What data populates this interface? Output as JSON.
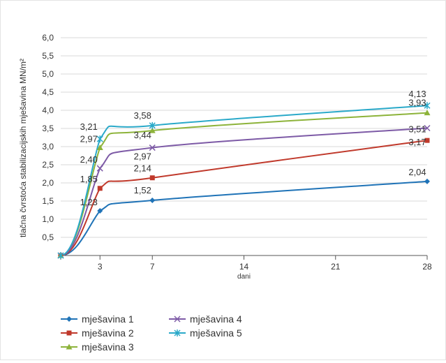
{
  "chart_data": {
    "type": "line",
    "title": "",
    "xlabel": "dani",
    "ylabel": "tlačna čvrstoća stabilizacijskih mješavina MN/m²",
    "xlim": [
      0,
      28
    ],
    "ylim": [
      0,
      6.0
    ],
    "x_ticks": [
      3,
      7,
      14,
      21,
      28
    ],
    "y_ticks": [
      "0,5",
      "1,0",
      "1,5",
      "2,0",
      "2,5",
      "3,0",
      "3,5",
      "4,0",
      "4,5",
      "5,0",
      "5,5",
      "6,0"
    ],
    "grid": "horizontal",
    "legend_position": "bottom-left",
    "x": [
      0,
      3,
      7,
      28
    ],
    "series": [
      {
        "name": "mješavina 1",
        "color": "#1f73b7",
        "marker": "diamond",
        "values": [
          0,
          1.23,
          1.52,
          2.04
        ],
        "labels": [
          "",
          "1,23",
          "1,52",
          "2,04"
        ]
      },
      {
        "name": "mješavina 2",
        "color": "#c0392b",
        "marker": "square",
        "values": [
          0,
          1.85,
          2.14,
          3.17
        ],
        "labels": [
          "",
          "1,85",
          "2,14",
          "3,17"
        ]
      },
      {
        "name": "mješavina 3",
        "color": "#8db33a",
        "marker": "triangle",
        "values": [
          0,
          2.97,
          3.44,
          3.93
        ],
        "labels": [
          "",
          "2,97",
          "3,44",
          "3,93"
        ]
      },
      {
        "name": "mješavina 4",
        "color": "#7d5aa6",
        "marker": "x",
        "values": [
          0,
          2.4,
          2.97,
          3.51
        ],
        "labels": [
          "",
          "2,40",
          "2,97",
          "3,51"
        ]
      },
      {
        "name": "mješavina 5",
        "color": "#2aa9c9",
        "marker": "star",
        "values": [
          0,
          3.21,
          3.58,
          4.13
        ],
        "labels": [
          "",
          "3,21",
          "3,58",
          "4,13"
        ]
      }
    ]
  }
}
